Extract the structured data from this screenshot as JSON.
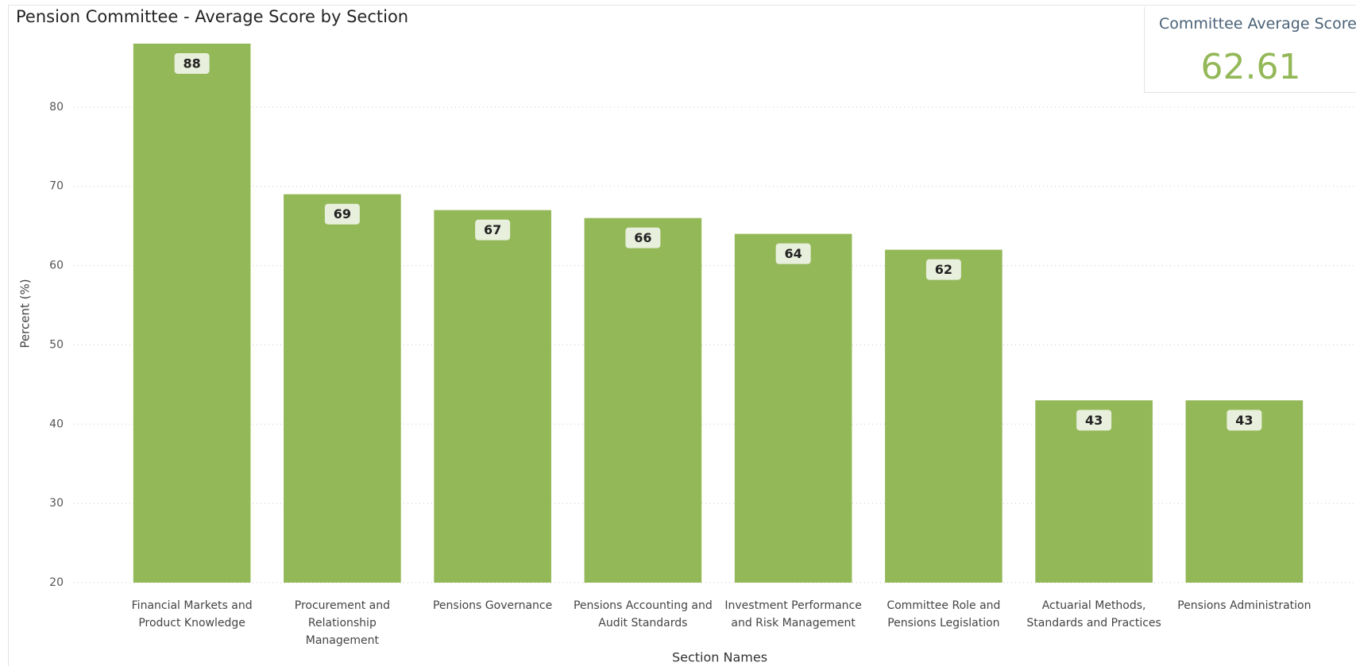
{
  "chart_data": {
    "type": "bar",
    "title": "Pension Committee - Average Score by Section",
    "x_label": "Section Names",
    "y_label": "Percent (%)",
    "categories": [
      "Financial Markets and Product Knowledge",
      "Procurement and Relationship Management",
      "Pensions Governance",
      "Pensions Accounting and Audit Standards",
      "Investment Performance and Risk Management",
      "Committee Role and Pensions Legislation",
      "Actuarial Methods, Standards and Practices",
      "Pensions Administration"
    ],
    "values": [
      88,
      69,
      67,
      66,
      64,
      62,
      43,
      43
    ],
    "color": "#93b857",
    "ylim": [
      20,
      90
    ],
    "yticks": [
      20,
      30,
      40,
      50,
      60,
      70,
      80
    ],
    "grid": true
  },
  "card": {
    "title": "Committee Average Score",
    "value": "62.61"
  }
}
